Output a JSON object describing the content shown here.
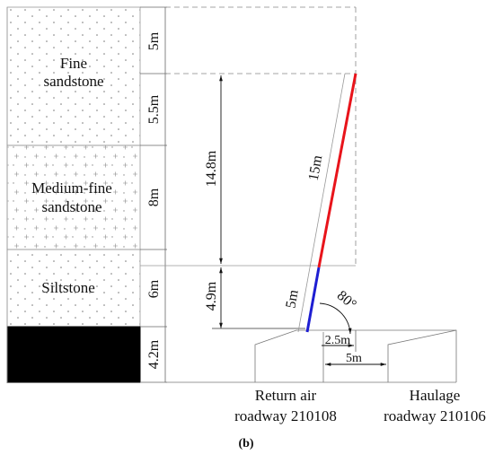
{
  "strata": [
    {
      "name": "Fine\nsandstone",
      "thickness": "5m",
      "thickness2": "5.5m"
    },
    {
      "name": "Medium-fine\nsandstone",
      "thickness": "8m"
    },
    {
      "name": "Siltstone",
      "thickness": "6m"
    },
    {
      "name": "coal",
      "thickness": "4.2m"
    }
  ],
  "labels": {
    "fine": "Fine",
    "fine2": "sandstone",
    "medium": "Medium-fine",
    "medium2": "sandstone",
    "silt": "Siltstone",
    "t5": "5m",
    "t55": "5.5m",
    "t8": "8m",
    "t6": "6m",
    "t42": "4.2m",
    "v148": "14.8m",
    "v49": "4.9m",
    "len15": "15m",
    "len5": "5m",
    "angle": "80°",
    "h25": "2.5m",
    "h5": "5m",
    "return1": "Return air",
    "return2": "roadway 210108",
    "haul1": "Haulage",
    "haul2": "roadway 210106",
    "caption": "(b)"
  },
  "colors": {
    "red_segment": "#e8141b",
    "blue_segment": "#1e1ed2",
    "coal": "#000000"
  }
}
